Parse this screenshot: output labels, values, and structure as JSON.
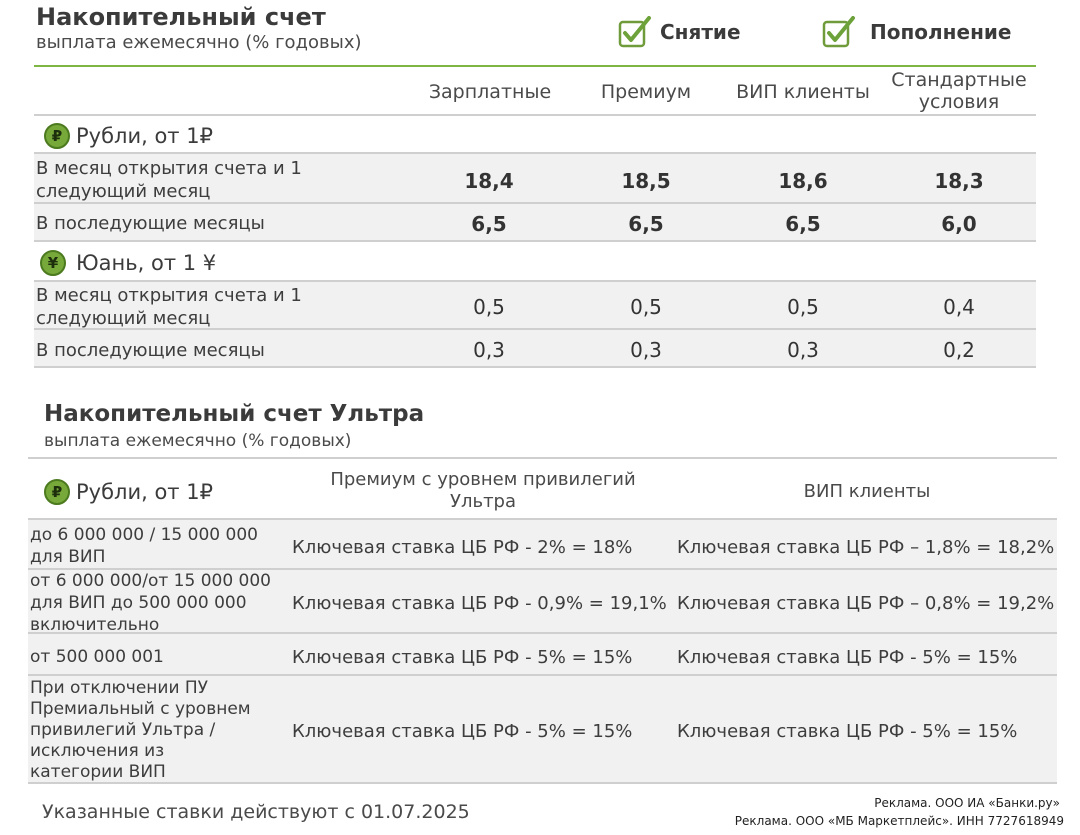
{
  "section1": {
    "title": "Накопительный счет",
    "subtitle": "выплата ежемесячно (% годовых)",
    "checks": [
      {
        "label": "Снятие"
      },
      {
        "label": "Пополнение"
      }
    ],
    "columns": [
      "Зарплатные",
      "Премиум",
      "ВИП клиенты",
      "Стандартные условия"
    ],
    "rub": {
      "icon": "₽",
      "label": "Рубли, от 1₽",
      "rows": [
        {
          "label": "В месяц открытия счета и 1 следующий месяц",
          "values": [
            "18,4",
            "18,5",
            "18,6",
            "18,3"
          ]
        },
        {
          "label": "В последующие месяцы",
          "values": [
            "6,5",
            "6,5",
            "6,5",
            "6,0"
          ]
        }
      ]
    },
    "cny": {
      "icon": "¥",
      "label": "Юань, от 1 ¥",
      "rows": [
        {
          "label": "В месяц открытия счета и 1 следующий месяц",
          "values": [
            "0,5",
            "0,5",
            "0,5",
            "0,4"
          ]
        },
        {
          "label": "В последующие месяцы",
          "values": [
            "0,3",
            "0,3",
            "0,3",
            "0,2"
          ]
        }
      ]
    }
  },
  "section2": {
    "title": "Накопительный счет Ультра",
    "subtitle": "выплата ежемесячно (% годовых)",
    "rub": {
      "icon": "₽",
      "label": "Рубли, от 1₽"
    },
    "columns": [
      "Премиум с уровнем привилегий Ультра",
      "ВИП клиенты"
    ],
    "rows": [
      {
        "label": "до 6 000 000 / 15 000 000 для ВИП",
        "values": [
          "Ключевая ставка ЦБ РФ - 2% = 18%",
          "Ключевая ставка ЦБ РФ – 1,8% = 18,2%"
        ]
      },
      {
        "label": "от 6 000 000/от 15 000 000 для ВИП до 500 000 000 включительно",
        "values": [
          "Ключевая ставка ЦБ РФ - 0,9% = 19,1%",
          "Ключевая ставка ЦБ РФ – 0,8% = 19,2%"
        ]
      },
      {
        "label": "от 500 000 001",
        "values": [
          "Ключевая ставка ЦБ РФ - 5% = 15%",
          "Ключевая ставка ЦБ РФ - 5% = 15%"
        ]
      },
      {
        "label": "При отключении ПУ Премиальный с уровнем привилегий Ультра / исключения из категории ВИП",
        "values": [
          "Ключевая ставка ЦБ РФ - 5% = 15%",
          "Ключевая ставка ЦБ РФ - 5% = 15%"
        ]
      }
    ]
  },
  "footer": {
    "note": "Указанные ставки действуют с 01.07.2025",
    "ad1": "Реклама. ООО ИА «Банки.ру»",
    "ad2": "Реклама. ООО «МБ Маркетплейс». ИНН 7727618949"
  },
  "colors": {
    "accent": "#7fb542",
    "coin": "#77a83a",
    "row_bg": "#f1f1f1"
  }
}
